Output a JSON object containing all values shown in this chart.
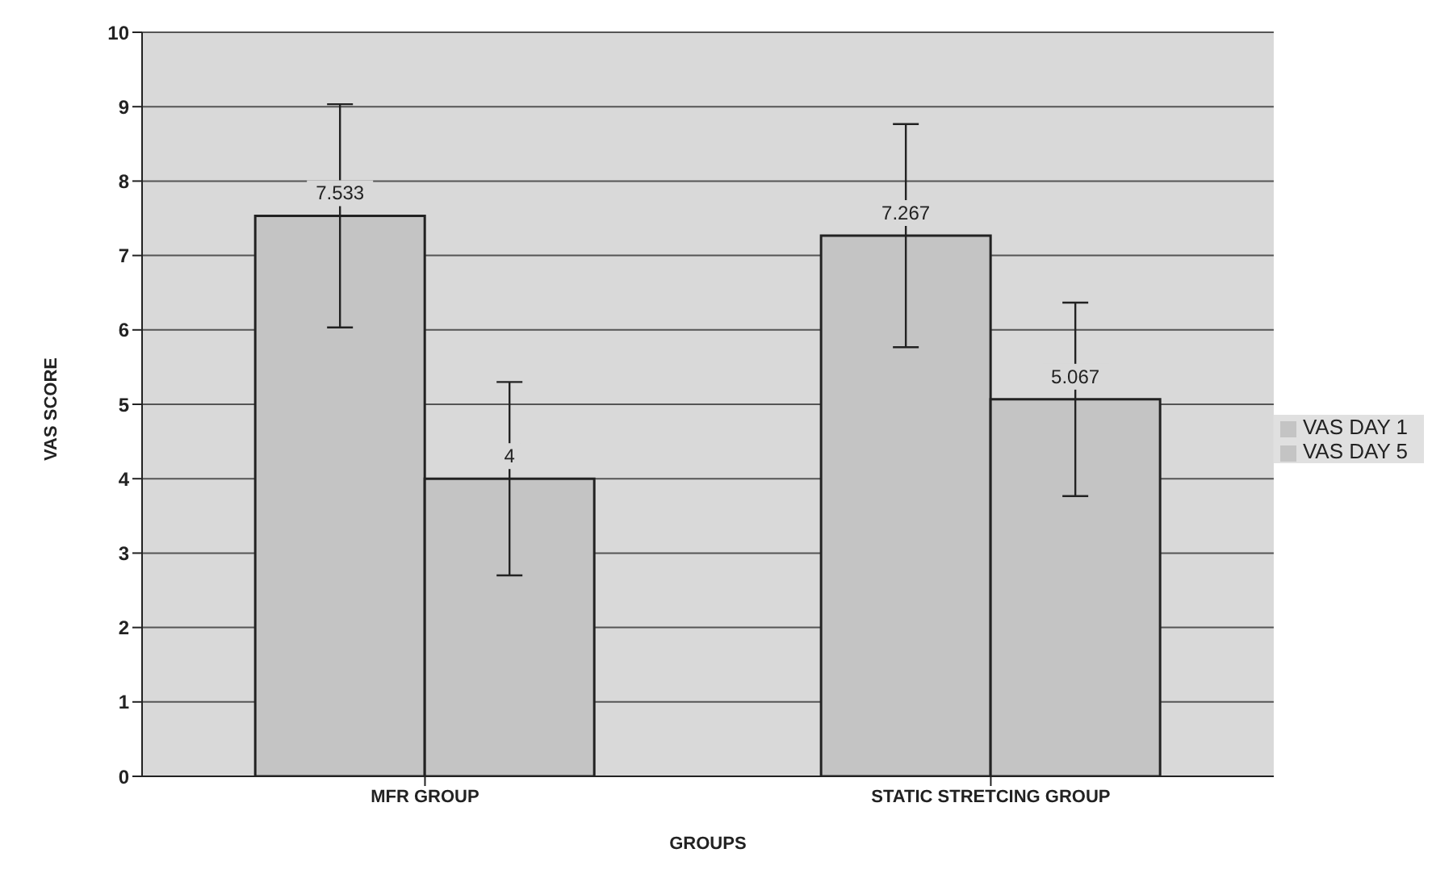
{
  "chart_data": {
    "type": "bar",
    "xlabel": "GROUPS",
    "ylabel": "VAS SCORE",
    "categories": [
      "MFR GROUP",
      "STATIC STRETCING GROUP"
    ],
    "series": [
      {
        "name": "VAS DAY 1",
        "color": "#c4c4c4",
        "values": [
          7.533,
          7.267
        ],
        "errors": [
          1.5,
          1.5
        ]
      },
      {
        "name": "VAS DAY 5",
        "color": "#c4c4c4",
        "values": [
          4,
          5.067
        ],
        "errors": [
          1.3,
          1.3
        ]
      }
    ],
    "ylim": [
      0,
      10
    ],
    "yticks": [
      0,
      1,
      2,
      3,
      4,
      5,
      6,
      7,
      8,
      9,
      10
    ],
    "grid": "y",
    "legend": "right",
    "data_labels": true
  }
}
